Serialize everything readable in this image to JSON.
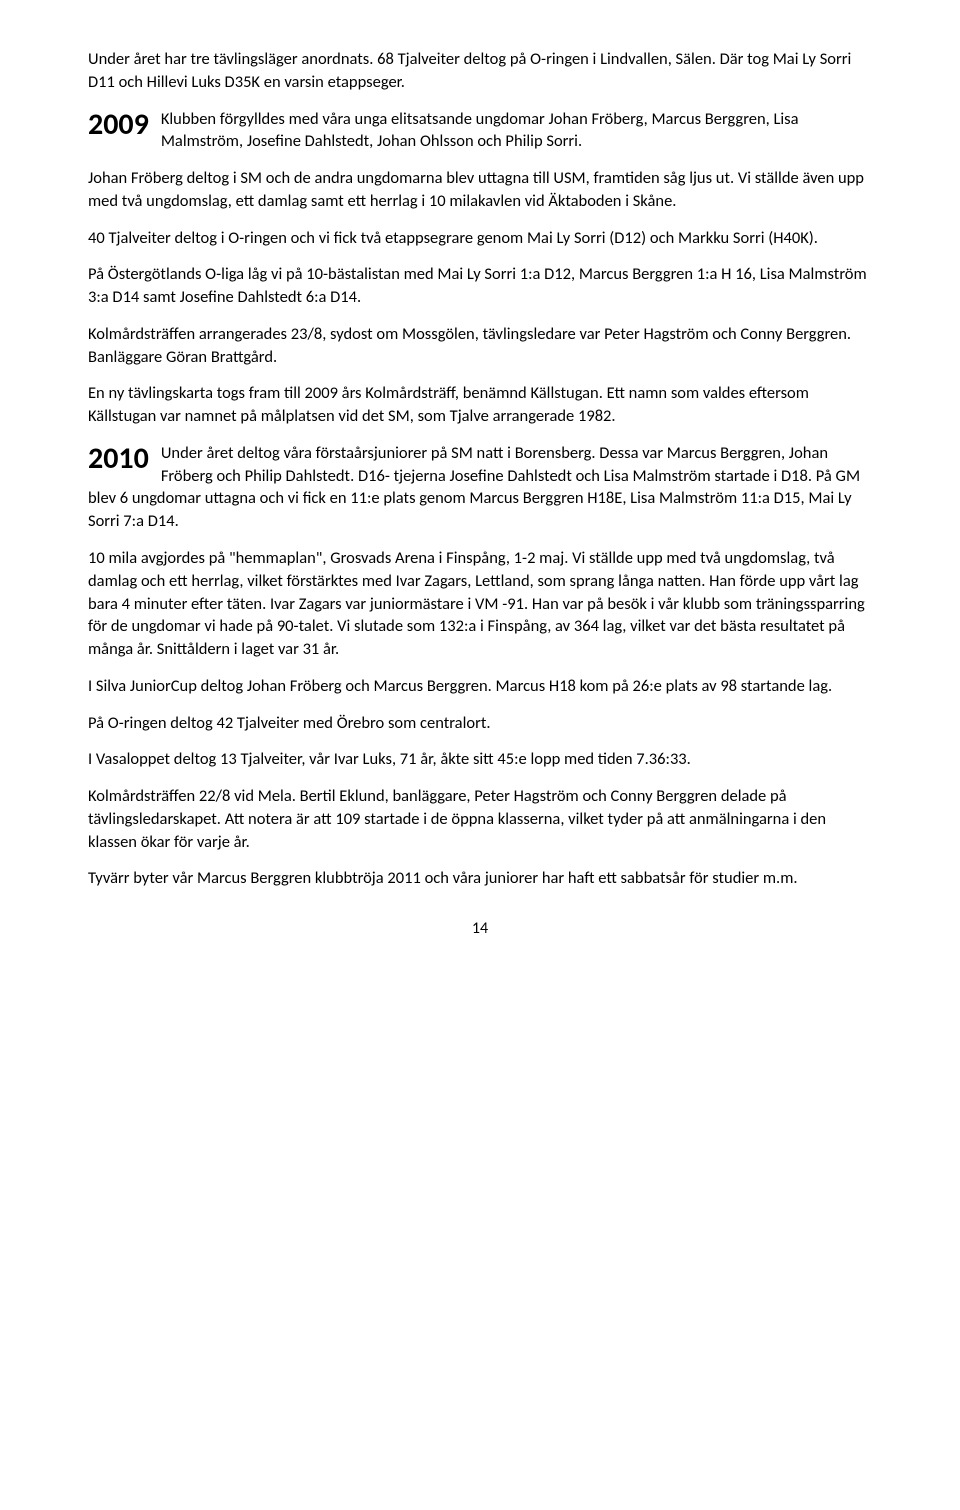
{
  "p1": "Under året har tre tävlingsläger anordnats. 68 Tjalveiter deltog på O-ringen i Lindvallen, Sälen. Där tog Mai Ly Sorri D11 och Hillevi Luks D35K en varsin etappseger.",
  "year1": "2009",
  "p2": "Klubben förgylldes med våra unga elitsatsande ungdomar Johan Fröberg, Marcus Berggren, Lisa Malmström, Josefine Dahlstedt, Johan Ohlsson och Philip Sorri.",
  "p3": "Johan Fröberg deltog i SM och de andra ungdomarna blev uttagna till USM, framtiden såg ljus ut. Vi ställde även upp med två ungdomslag, ett damlag samt ett herrlag i 10 milakavlen vid Äktaboden i Skåne.",
  "p4": "40 Tjalveiter deltog i O-ringen och vi fick två etappsegrare genom Mai Ly Sorri (D12) och Markku Sorri (H40K).",
  "p5": "På Östergötlands O-liga låg vi på 10-bästalistan med Mai Ly Sorri 1:a D12, Marcus Berggren 1:a H 16, Lisa Malmström 3:a D14 samt Josefine Dahlstedt 6:a D14.",
  "p6": "Kolmårdsträffen arrangerades 23/8, sydost om Mossgölen, tävlingsledare var Peter Hagström och Conny Berggren. Banläggare Göran Brattgård.",
  "p7": "En ny tävlingskarta togs fram till 2009 års Kolmårdsträff, benämnd Källstugan. Ett namn som valdes eftersom Källstugan var namnet på målplatsen vid det SM, som Tjalve arrangerade 1982.",
  "year2": "2010",
  "p8": "Under året deltog våra förstaårsjuniorer på SM natt i Borensberg. Dessa var Marcus Berggren, Johan Fröberg och Philip Dahlstedt. D16- tjejerna Josefine Dahlstedt och Lisa Malmström startade i D18. På GM blev 6 ungdomar uttagna och vi fick en 11:e plats genom Marcus Berggren H18E, Lisa Malmström 11:a D15, Mai Ly Sorri 7:a D14.",
  "p9": "10 mila avgjordes på \"hemmaplan\", Grosvads Arena i Finspång, 1-2 maj. Vi ställde upp med två ungdomslag, två damlag och ett herrlag, vilket förstärktes med Ivar Zagars, Lettland, som sprang långa natten. Han förde upp vårt lag bara 4 minuter efter täten. Ivar Zagars var juniormästare i VM -91. Han var på besök i vår klubb som träningssparring för de ungdomar vi hade på 90-talet. Vi slutade som 132:a i Finspång, av 364 lag, vilket var det bästa resultatet på många år. Snittåldern i laget var 31 år.",
  "p10": "I Silva JuniorCup deltog Johan Fröberg och Marcus Berggren. Marcus H18 kom på 26:e plats av 98 startande lag.",
  "p11": "På O-ringen deltog 42 Tjalveiter med Örebro som centralort.",
  "p12": "I Vasaloppet deltog 13 Tjalveiter, vår Ivar Luks, 71 år, åkte sitt 45:e lopp med tiden 7.36:33.",
  "p13": "Kolmårdsträffen 22/8 vid Mela. Bertil Eklund, banläggare, Peter Hagström och Conny Berggren delade på tävlingsledarskapet. Att notera är att 109 startade i de öppna klasserna, vilket tyder på att anmälningarna i den klassen ökar för varje år.",
  "p14": "Tyvärr byter vår Marcus Berggren klubbtröja 2011 och våra juniorer har haft ett sabbatsår för studier m.m.",
  "pageNumber": "14"
}
